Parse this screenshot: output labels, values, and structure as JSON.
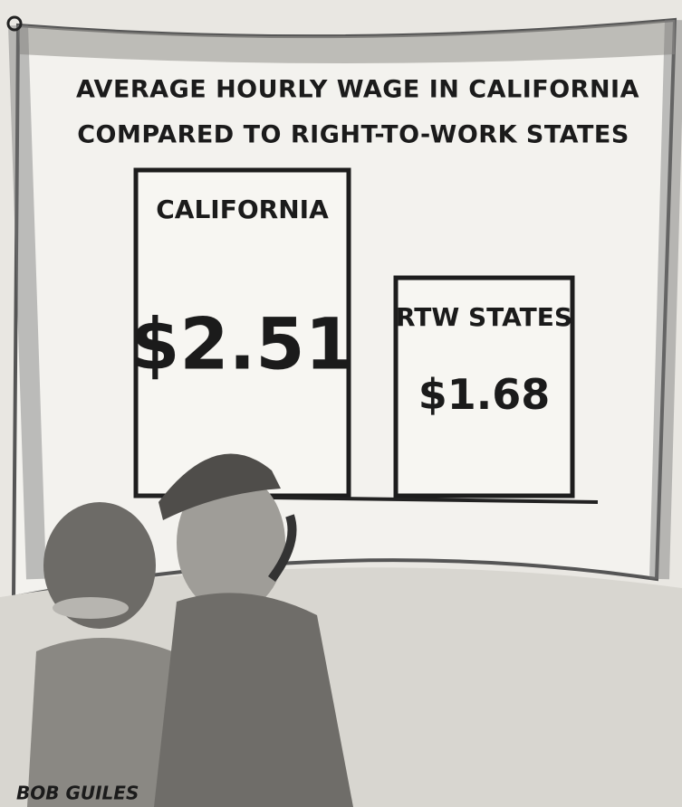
{
  "chart_data": {
    "type": "bar",
    "title": [
      "AVERAGE HOURLY WAGE IN CALIFORNIA",
      "COMPARED TO RIGHT-TO-WORK STATES"
    ],
    "categories": [
      "CALIFORNIA",
      "RTW STATES"
    ],
    "values": [
      2.51,
      1.68
    ],
    "value_labels": [
      "$2.51",
      "$1.68"
    ],
    "color": "#f7f6f2"
  },
  "signature": "BOB GUILES"
}
